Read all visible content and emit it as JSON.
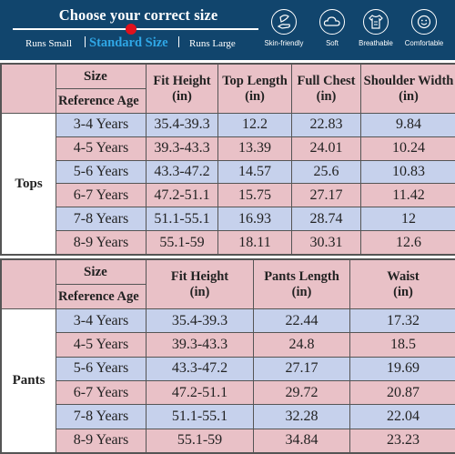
{
  "header": {
    "title": "Choose your correct size",
    "scale": {
      "runs_small": "Runs Small",
      "standard": "Standard Size",
      "runs_large": "Runs Large"
    },
    "features": [
      {
        "label": "Skin-friendly",
        "icon": "feather-hand-icon"
      },
      {
        "label": "Soft",
        "icon": "cloud-icon"
      },
      {
        "label": "Breathable",
        "icon": "shirt-icon"
      },
      {
        "label": "Comfortable",
        "icon": "smile-icon"
      }
    ],
    "colors": {
      "background": "#11456d",
      "accent": "#2fa7e6",
      "marker": "#e0111c"
    }
  },
  "colors": {
    "pink": "#e9c1c7",
    "blue": "#c6d1ec"
  },
  "tops": {
    "category": "Tops",
    "size_label": "Size",
    "ref_label": "Reference Age",
    "columns": [
      {
        "title": "Fit Height",
        "unit": "(in)"
      },
      {
        "title": "Top Length",
        "unit": "(in)"
      },
      {
        "title": "Full Chest",
        "unit": "(in)"
      },
      {
        "title": "Shoulder Width",
        "unit": "(in)"
      }
    ],
    "rows": [
      {
        "age": "3-4 Years",
        "values": [
          "35.4-39.3",
          "12.2",
          "22.83",
          "9.84"
        ]
      },
      {
        "age": "4-5 Years",
        "values": [
          "39.3-43.3",
          "13.39",
          "24.01",
          "10.24"
        ]
      },
      {
        "age": "5-6 Years",
        "values": [
          "43.3-47.2",
          "14.57",
          "25.6",
          "10.83"
        ]
      },
      {
        "age": "6-7 Years",
        "values": [
          "47.2-51.1",
          "15.75",
          "27.17",
          "11.42"
        ]
      },
      {
        "age": "7-8 Years",
        "values": [
          "51.1-55.1",
          "16.93",
          "28.74",
          "12"
        ]
      },
      {
        "age": "8-9 Years",
        "values": [
          "55.1-59",
          "18.11",
          "30.31",
          "12.6"
        ]
      }
    ]
  },
  "pants": {
    "category": "Pants",
    "size_label": "Size",
    "ref_label": "Reference Age",
    "columns": [
      {
        "title": "Fit Height",
        "unit": "(in)"
      },
      {
        "title": "Pants Length",
        "unit": "(in)"
      },
      {
        "title": "Waist",
        "unit": "(in)"
      }
    ],
    "rows": [
      {
        "age": "3-4 Years",
        "values": [
          "35.4-39.3",
          "22.44",
          "17.32"
        ]
      },
      {
        "age": "4-5 Years",
        "values": [
          "39.3-43.3",
          "24.8",
          "18.5"
        ]
      },
      {
        "age": "5-6 Years",
        "values": [
          "43.3-47.2",
          "27.17",
          "19.69"
        ]
      },
      {
        "age": "6-7 Years",
        "values": [
          "47.2-51.1",
          "29.72",
          "20.87"
        ]
      },
      {
        "age": "7-8 Years",
        "values": [
          "51.1-55.1",
          "32.28",
          "22.04"
        ]
      },
      {
        "age": "8-9 Years",
        "values": [
          "55.1-59",
          "34.84",
          "23.23"
        ]
      }
    ]
  }
}
